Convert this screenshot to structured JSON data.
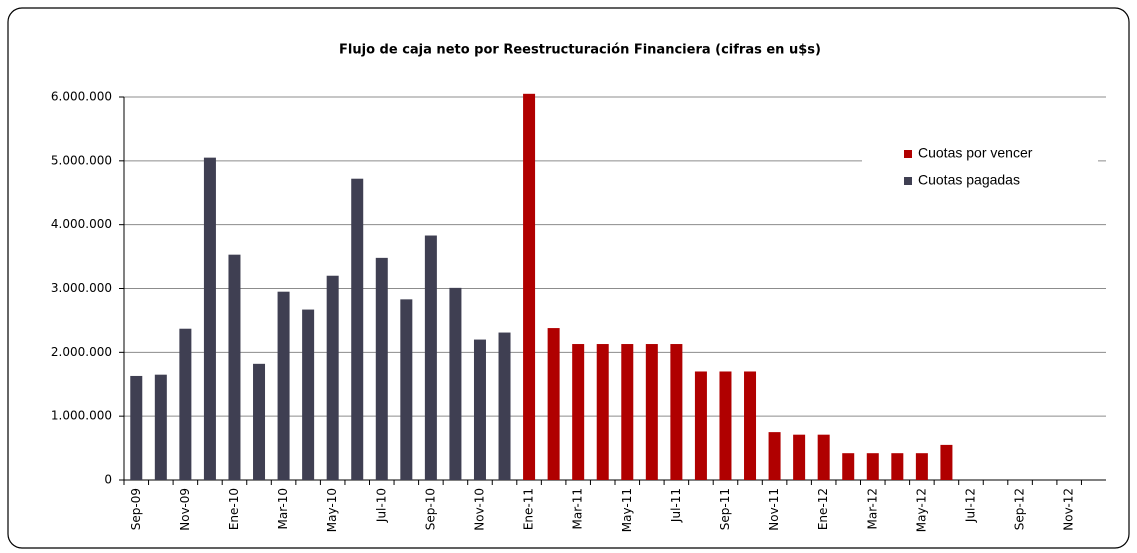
{
  "chart_data": {
    "type": "bar",
    "title": "Flujo de caja neto por Reestructuración Financiera (cifras en u$s)",
    "categories": [
      "Sep-09",
      null,
      "Nov-09",
      null,
      "Ene-10",
      null,
      "Mar-10",
      null,
      "May-10",
      null,
      "Jul-10",
      null,
      "Sep-10",
      null,
      "Nov-10",
      null,
      "Ene-11",
      null,
      "Mar-11",
      null,
      "May-11",
      null,
      "Jul-11",
      null,
      "Sep-11",
      null,
      "Nov-11",
      null,
      "Ene-12",
      null,
      "Mar-12",
      null,
      "May-12",
      null,
      "Jul-12",
      null,
      "Sep-12",
      null,
      "Nov-12",
      null
    ],
    "series": [
      {
        "name": "Cuotas por vencer",
        "color": "#b00000",
        "values": [
          null,
          null,
          null,
          null,
          null,
          null,
          null,
          null,
          null,
          null,
          null,
          null,
          null,
          null,
          null,
          null,
          6050000,
          2380000,
          2130000,
          2130000,
          2130000,
          2130000,
          2130000,
          1700000,
          1700000,
          1700000,
          750000,
          710000,
          710000,
          420000,
          420000,
          420000,
          420000,
          550000,
          null,
          null,
          null,
          null,
          null,
          null
        ]
      },
      {
        "name": "Cuotas pagadas",
        "color": "#3f3f52",
        "values": [
          1630000,
          1650000,
          2370000,
          5050000,
          3530000,
          1820000,
          2950000,
          2670000,
          3200000,
          4720000,
          3480000,
          2830000,
          3830000,
          3010000,
          2200000,
          2310000,
          null,
          null,
          null,
          null,
          null,
          null,
          null,
          null,
          null,
          null,
          null,
          null,
          null,
          null,
          null,
          null,
          null,
          null,
          null,
          null,
          null,
          null,
          null,
          null
        ]
      }
    ],
    "ylim": [
      0,
      6000000
    ],
    "yticks": [
      0,
      {
        "value": 1000000,
        "label": "1.000.000"
      },
      {
        "value": 2000000,
        "label": "2.000.000"
      },
      {
        "value": 3000000,
        "label": "3.000.000"
      },
      {
        "value": 4000000,
        "label": "4.000.000"
      },
      {
        "value": 5000000,
        "label": "5.000.000"
      },
      {
        "value": 6000000,
        "label": "6.000.000"
      }
    ],
    "grid": true,
    "legend": "upper right"
  }
}
